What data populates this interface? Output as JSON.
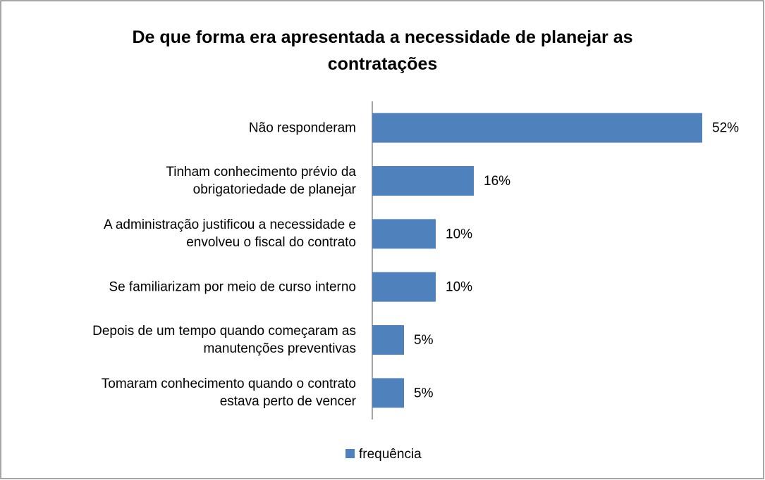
{
  "chart_data": {
    "type": "bar",
    "orientation": "horizontal",
    "title": "De que forma era apresentada a necessidade de planejar as contratações",
    "categories": [
      "Não responderam",
      "Tinham conhecimento prévio da\nobrigatoriedade de planejar",
      "A administração justificou a necessidade e\nenvolveu o fiscal do contrato",
      "Se familiarizam por meio de curso interno",
      "Depois de um tempo quando começaram as\nmanutenções preventivas",
      "Tomaram conhecimento quando o contrato\nestava perto de vencer"
    ],
    "series": [
      {
        "name": "frequência",
        "color": "#4f81bd",
        "values": [
          52,
          16,
          10,
          10,
          5,
          5
        ],
        "value_labels": [
          "52%",
          "16%",
          "10%",
          "10%",
          "5%",
          "5%"
        ]
      }
    ],
    "legend": "bottom"
  }
}
